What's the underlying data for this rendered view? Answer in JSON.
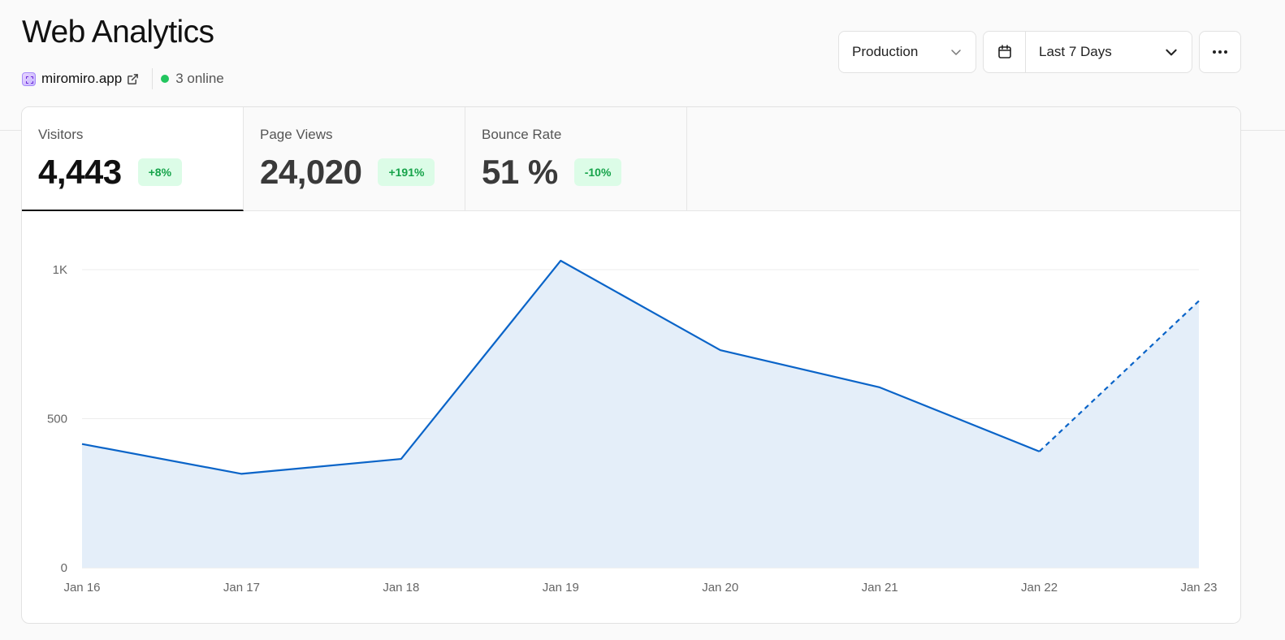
{
  "header": {
    "title": "Web Analytics",
    "site_name": "miromiro.app",
    "online_text": "3 online"
  },
  "toolbar": {
    "environment": "Production",
    "date_range": "Last 7 Days"
  },
  "metrics": [
    {
      "label": "Visitors",
      "value": "4,443",
      "change": "+8%"
    },
    {
      "label": "Page Views",
      "value": "24,020",
      "change": "+191%"
    },
    {
      "label": "Bounce Rate",
      "value": "51 %",
      "change": "-10%"
    }
  ],
  "colors": {
    "accent": "#0a64c8",
    "area": "#e4eef9",
    "badge_bg": "#dcfce7",
    "badge_text": "#16a34a",
    "online": "#22c55e"
  },
  "chart_data": {
    "type": "area",
    "x": [
      "Jan 16",
      "Jan 17",
      "Jan 18",
      "Jan 19",
      "Jan 20",
      "Jan 21",
      "Jan 22",
      "Jan 23"
    ],
    "series": [
      {
        "values": [
          415,
          315,
          365,
          1030,
          730,
          605,
          390,
          895
        ]
      }
    ],
    "projected_from_index": 6,
    "ylim": [
      0,
      1000
    ],
    "yticks": [
      0,
      500,
      1000
    ],
    "ytick_labels": [
      "0",
      "500",
      "1K"
    ],
    "grid": true
  }
}
